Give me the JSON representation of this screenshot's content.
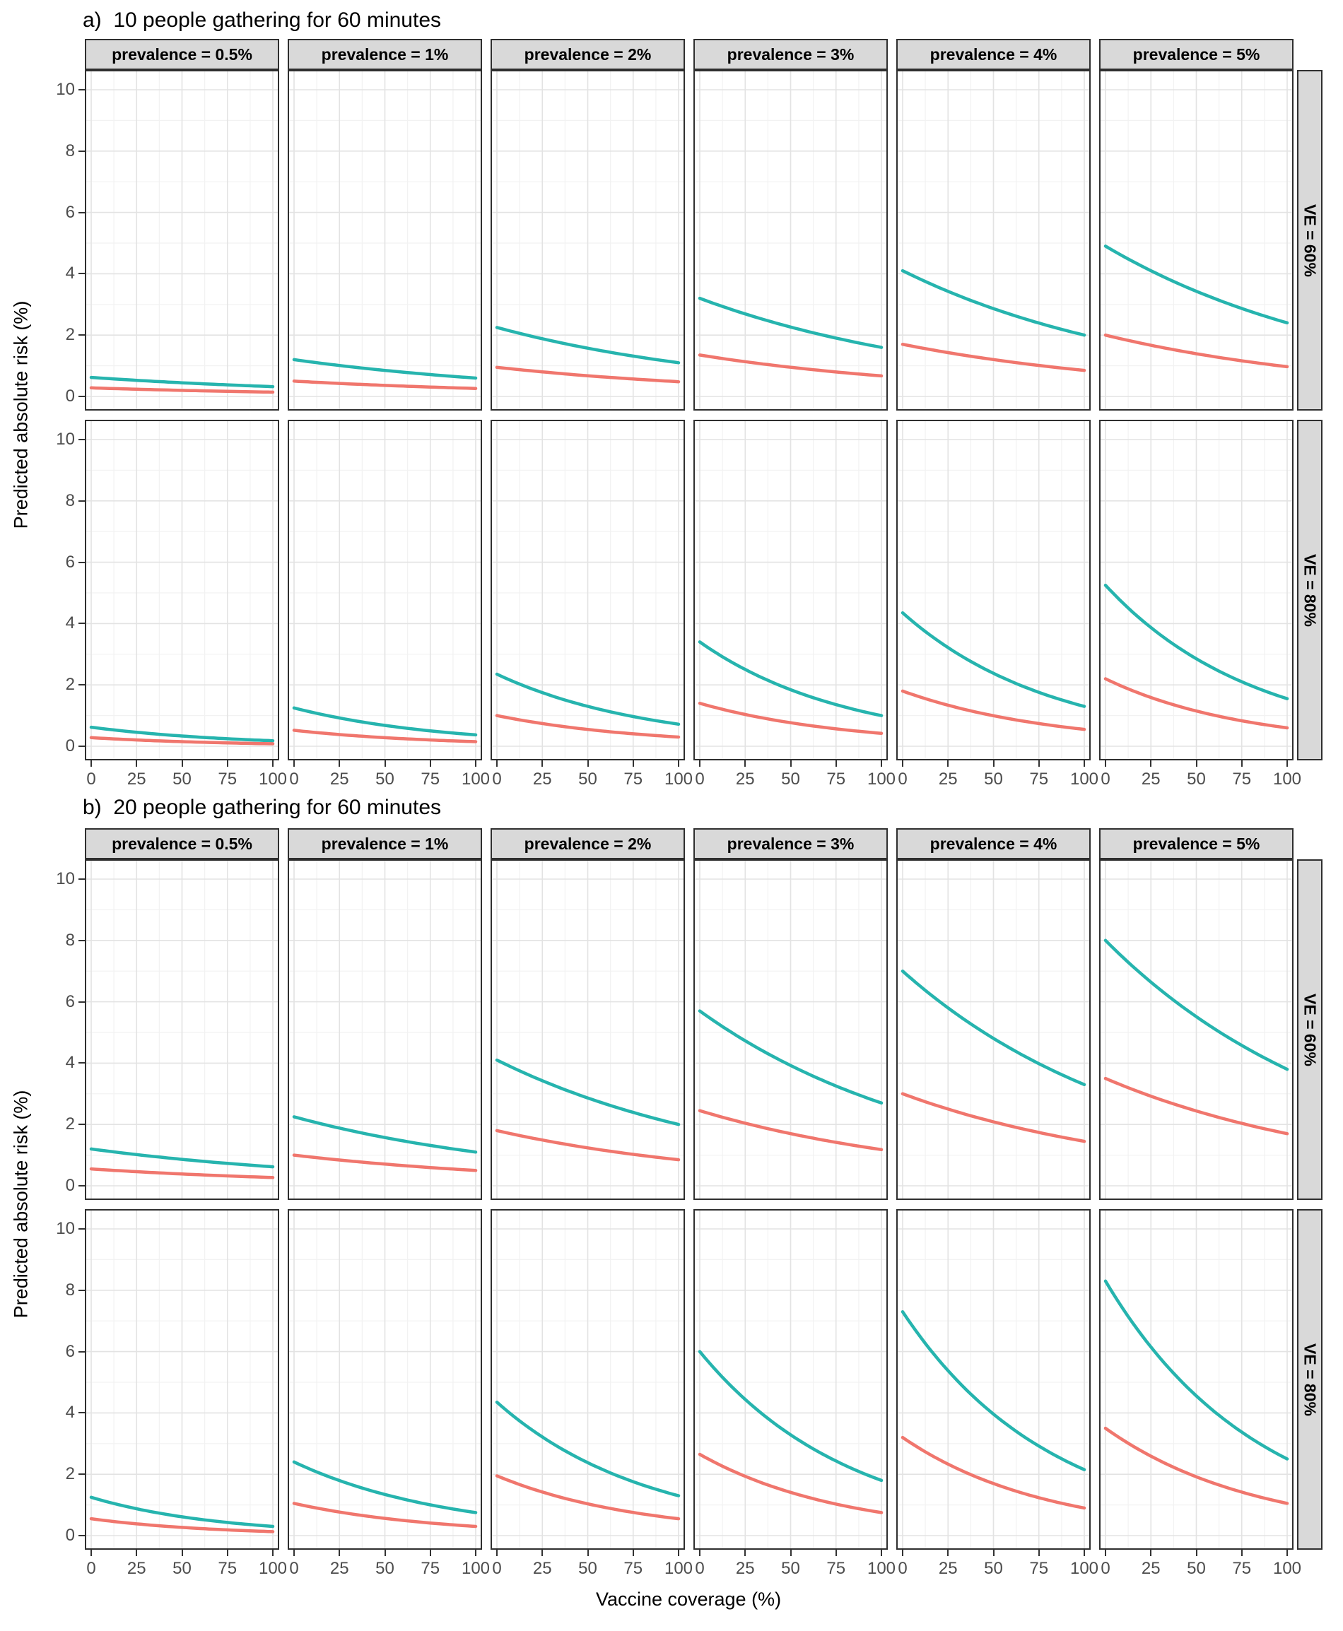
{
  "chart_data": {
    "type": "line",
    "x_label": "Vaccine coverage (%)",
    "y_label": "Predicted absolute risk (%)",
    "x_ticks": [
      0,
      25,
      50,
      75,
      100
    ],
    "y_ticks": [
      0,
      2,
      4,
      6,
      8,
      10
    ],
    "x_range": [
      0,
      100
    ],
    "y_range": [
      0,
      10
    ],
    "grid": "major-and-minor",
    "legend": "none",
    "curve_shape": "exponential-decay",
    "series_colors": {
      "teal": "#26b4ae",
      "salmon": "#f0766d"
    },
    "facet_col_variable": "prevalence",
    "facet_row_variable": "VE",
    "sections": [
      {
        "label": "a)  10 people gathering for 60 minutes",
        "facet_cols": [
          "prevalence = 0.5%",
          "prevalence = 1%",
          "prevalence = 2%",
          "prevalence = 3%",
          "prevalence = 4%",
          "prevalence = 5%"
        ],
        "facet_rows": [
          "VE = 60%",
          "VE = 80%"
        ],
        "rows": [
          {
            "label": "VE = 60%",
            "panels": [
              {
                "col": "prevalence = 0.5%",
                "teal": [
                  0.62,
                  0.32
                ],
                "salmon": [
                  0.28,
                  0.14
                ]
              },
              {
                "col": "prevalence = 1%",
                "teal": [
                  1.2,
                  0.6
                ],
                "salmon": [
                  0.5,
                  0.26
                ]
              },
              {
                "col": "prevalence = 2%",
                "teal": [
                  2.25,
                  1.1
                ],
                "salmon": [
                  0.95,
                  0.48
                ]
              },
              {
                "col": "prevalence = 3%",
                "teal": [
                  3.2,
                  1.6
                ],
                "salmon": [
                  1.35,
                  0.67
                ]
              },
              {
                "col": "prevalence = 4%",
                "teal": [
                  4.1,
                  2.0
                ],
                "salmon": [
                  1.7,
                  0.85
                ]
              },
              {
                "col": "prevalence = 5%",
                "teal": [
                  4.9,
                  2.4
                ],
                "salmon": [
                  2.0,
                  0.97
                ]
              }
            ]
          },
          {
            "label": "VE = 80%",
            "panels": [
              {
                "col": "prevalence = 0.5%",
                "teal": [
                  0.62,
                  0.18
                ],
                "salmon": [
                  0.28,
                  0.08
                ]
              },
              {
                "col": "prevalence = 1%",
                "teal": [
                  1.25,
                  0.37
                ],
                "salmon": [
                  0.52,
                  0.15
                ]
              },
              {
                "col": "prevalence = 2%",
                "teal": [
                  2.35,
                  0.72
                ],
                "salmon": [
                  1.0,
                  0.3
                ]
              },
              {
                "col": "prevalence = 3%",
                "teal": [
                  3.4,
                  1.0
                ],
                "salmon": [
                  1.4,
                  0.42
                ]
              },
              {
                "col": "prevalence = 4%",
                "teal": [
                  4.35,
                  1.3
                ],
                "salmon": [
                  1.8,
                  0.55
                ]
              },
              {
                "col": "prevalence = 5%",
                "teal": [
                  5.25,
                  1.55
                ],
                "salmon": [
                  2.2,
                  0.6
                ]
              }
            ]
          }
        ]
      },
      {
        "label": "b)  20 people gathering for 60 minutes",
        "facet_cols": [
          "prevalence = 0.5%",
          "prevalence = 1%",
          "prevalence = 2%",
          "prevalence = 3%",
          "prevalence = 4%",
          "prevalence = 5%"
        ],
        "facet_rows": [
          "VE = 60%",
          "VE = 80%"
        ],
        "rows": [
          {
            "label": "VE = 60%",
            "panels": [
              {
                "col": "prevalence = 0.5%",
                "teal": [
                  1.2,
                  0.62
                ],
                "salmon": [
                  0.55,
                  0.27
                ]
              },
              {
                "col": "prevalence = 1%",
                "teal": [
                  2.25,
                  1.1
                ],
                "salmon": [
                  1.0,
                  0.5
                ]
              },
              {
                "col": "prevalence = 2%",
                "teal": [
                  4.1,
                  2.0
                ],
                "salmon": [
                  1.8,
                  0.85
                ]
              },
              {
                "col": "prevalence = 3%",
                "teal": [
                  5.7,
                  2.7
                ],
                "salmon": [
                  2.45,
                  1.18
                ]
              },
              {
                "col": "prevalence = 4%",
                "teal": [
                  7.0,
                  3.3
                ],
                "salmon": [
                  3.0,
                  1.45
                ]
              },
              {
                "col": "prevalence = 5%",
                "teal": [
                  8.0,
                  3.8
                ],
                "salmon": [
                  3.5,
                  1.7
                ]
              }
            ]
          },
          {
            "label": "VE = 80%",
            "panels": [
              {
                "col": "prevalence = 0.5%",
                "teal": [
                  1.25,
                  0.3
                ],
                "salmon": [
                  0.55,
                  0.13
                ]
              },
              {
                "col": "prevalence = 1%",
                "teal": [
                  2.4,
                  0.75
                ],
                "salmon": [
                  1.05,
                  0.3
                ]
              },
              {
                "col": "prevalence = 2%",
                "teal": [
                  4.35,
                  1.3
                ],
                "salmon": [
                  1.95,
                  0.55
                ]
              },
              {
                "col": "prevalence = 3%",
                "teal": [
                  6.0,
                  1.8
                ],
                "salmon": [
                  2.65,
                  0.75
                ]
              },
              {
                "col": "prevalence = 4%",
                "teal": [
                  7.3,
                  2.15
                ],
                "salmon": [
                  3.2,
                  0.9
                ]
              },
              {
                "col": "prevalence = 5%",
                "teal": [
                  8.3,
                  2.5
                ],
                "salmon": [
                  3.5,
                  1.05
                ]
              }
            ]
          }
        ]
      }
    ]
  }
}
